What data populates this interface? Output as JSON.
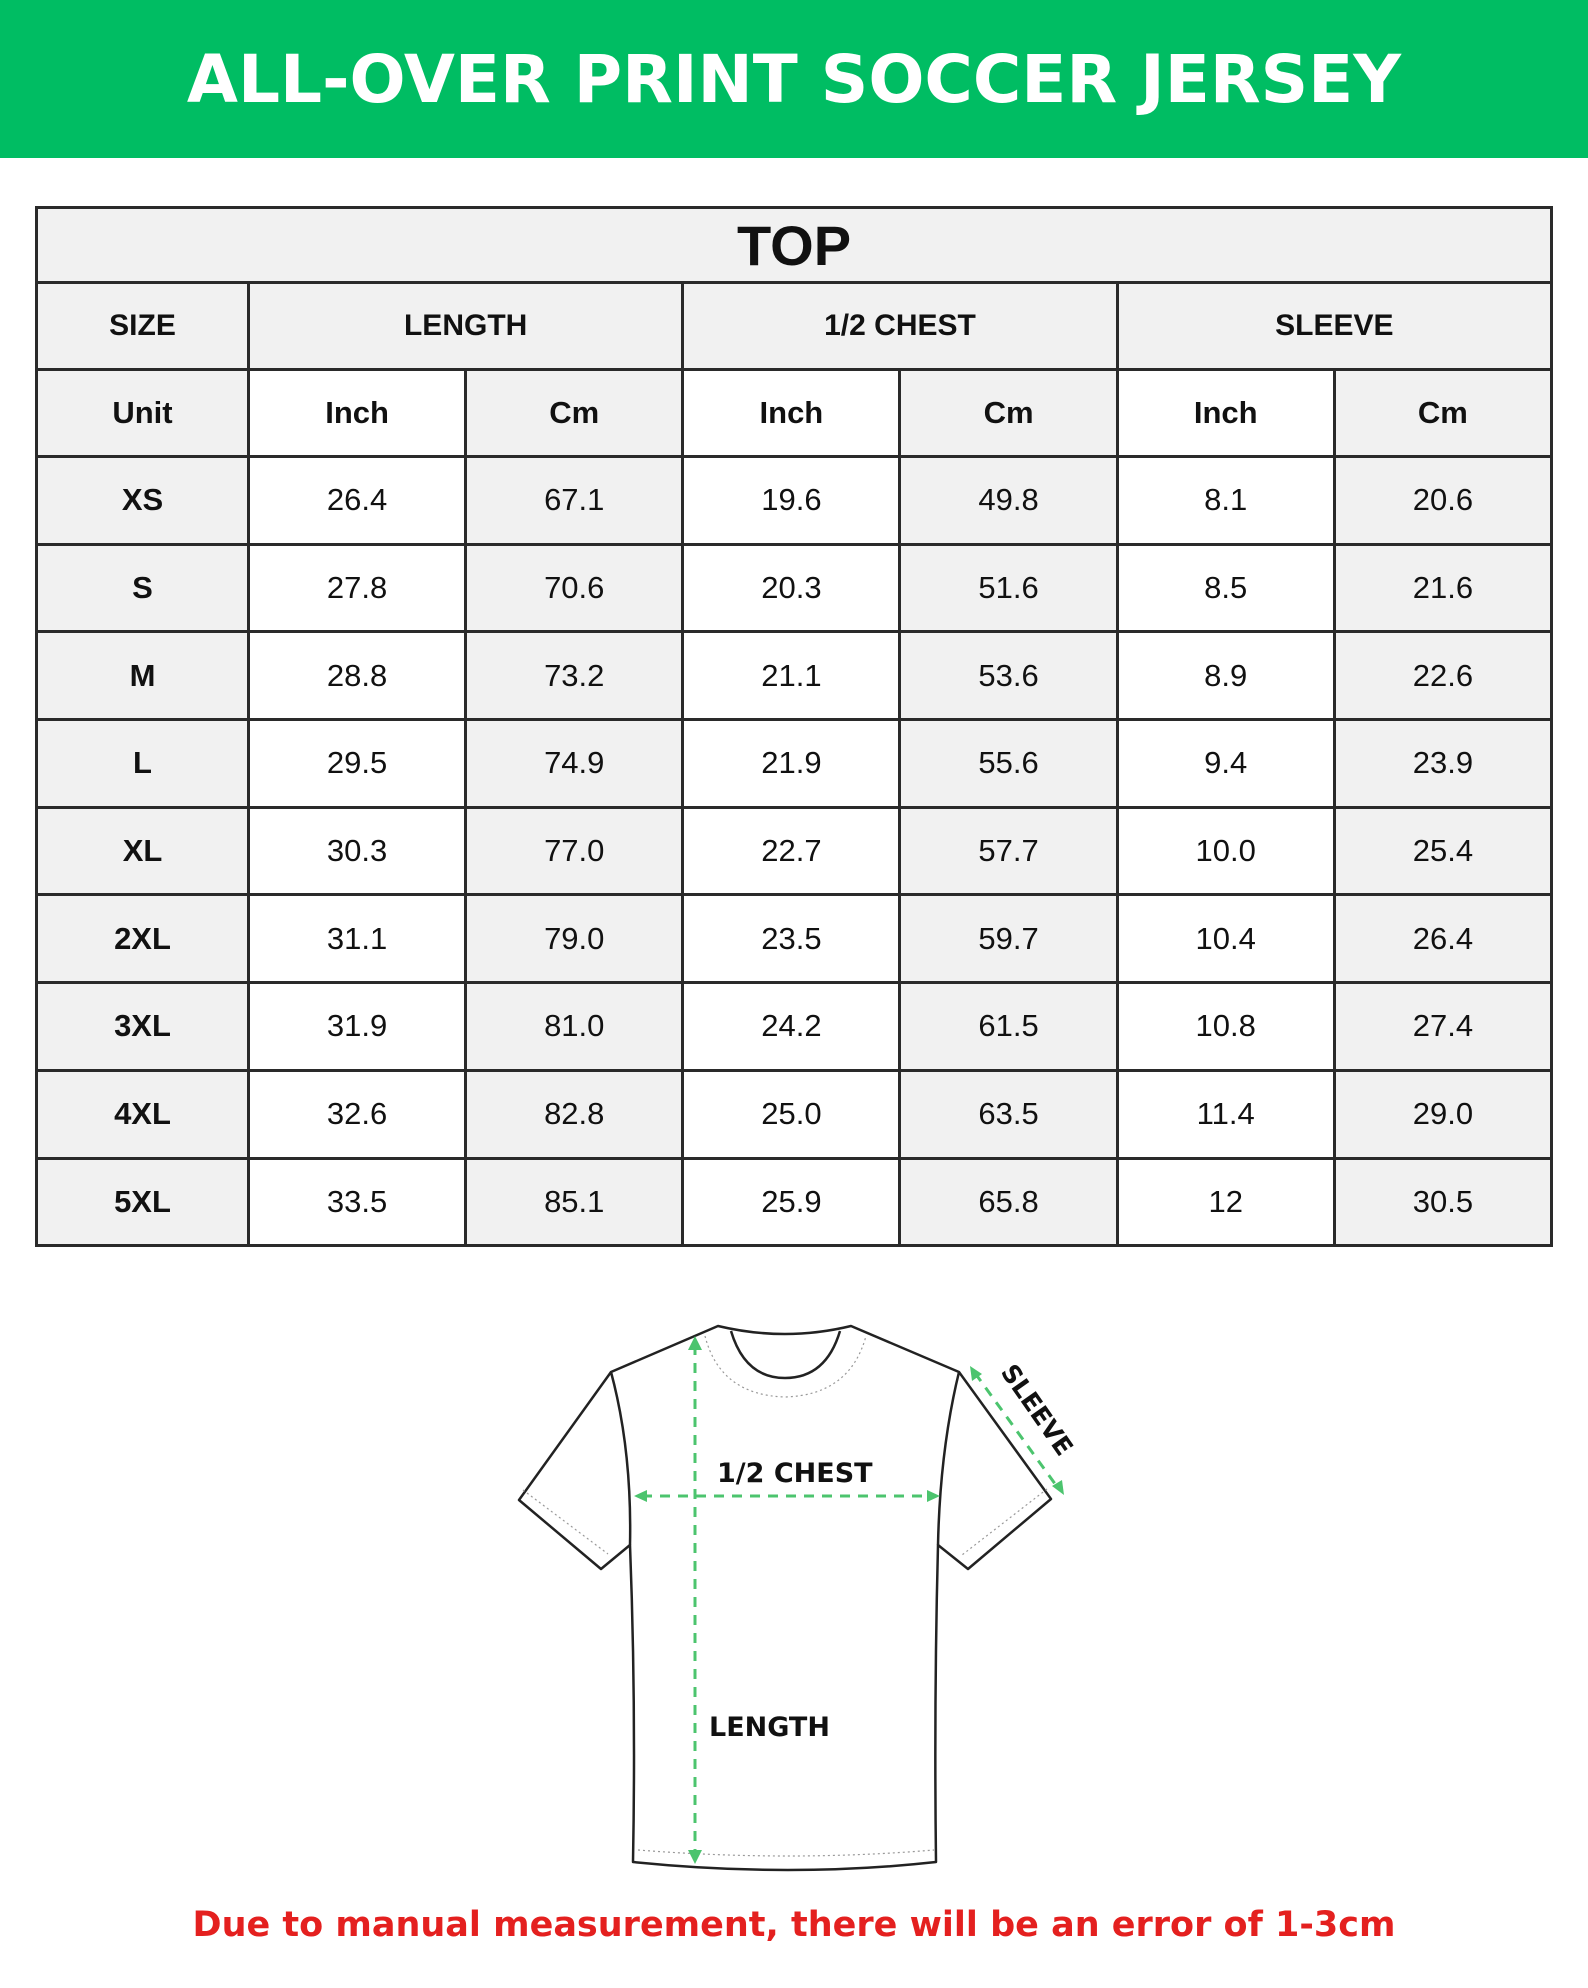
{
  "title": "ALL-OVER PRINT SOCCER JERSEY",
  "table": {
    "section": "TOP",
    "groups": {
      "size": "SIZE",
      "length": "LENGTH",
      "chest": "1/2 CHEST",
      "sleeve": "SLEEVE"
    },
    "units": {
      "label": "Unit",
      "inch": "Inch",
      "cm": "Cm"
    },
    "rows": [
      [
        "XS",
        "26.4",
        "67.1",
        "19.6",
        "49.8",
        "8.1",
        "20.6"
      ],
      [
        "S",
        "27.8",
        "70.6",
        "20.3",
        "51.6",
        "8.5",
        "21.6"
      ],
      [
        "M",
        "28.8",
        "73.2",
        "21.1",
        "53.6",
        "8.9",
        "22.6"
      ],
      [
        "L",
        "29.5",
        "74.9",
        "21.9",
        "55.6",
        "9.4",
        "23.9"
      ],
      [
        "XL",
        "30.3",
        "77.0",
        "22.7",
        "57.7",
        "10.0",
        "25.4"
      ],
      [
        "2XL",
        "31.1",
        "79.0",
        "23.5",
        "59.7",
        "10.4",
        "26.4"
      ],
      [
        "3XL",
        "31.9",
        "81.0",
        "24.2",
        "61.5",
        "10.8",
        "27.4"
      ],
      [
        "4XL",
        "32.6",
        "82.8",
        "25.0",
        "63.5",
        "11.4",
        "29.0"
      ],
      [
        "5XL",
        "33.5",
        "85.1",
        "25.9",
        "65.8",
        "12",
        "30.5"
      ]
    ]
  },
  "diagram": {
    "chest_label": "1/2 CHEST",
    "length_label": "LENGTH",
    "sleeve_label": "SLEEVE"
  },
  "note": "Due to manual measurement, there will be an error of 1-3cm",
  "colors": {
    "brand_green": "#00bd63",
    "arrow_green": "#4cc46e",
    "note_red": "#e4201f"
  }
}
